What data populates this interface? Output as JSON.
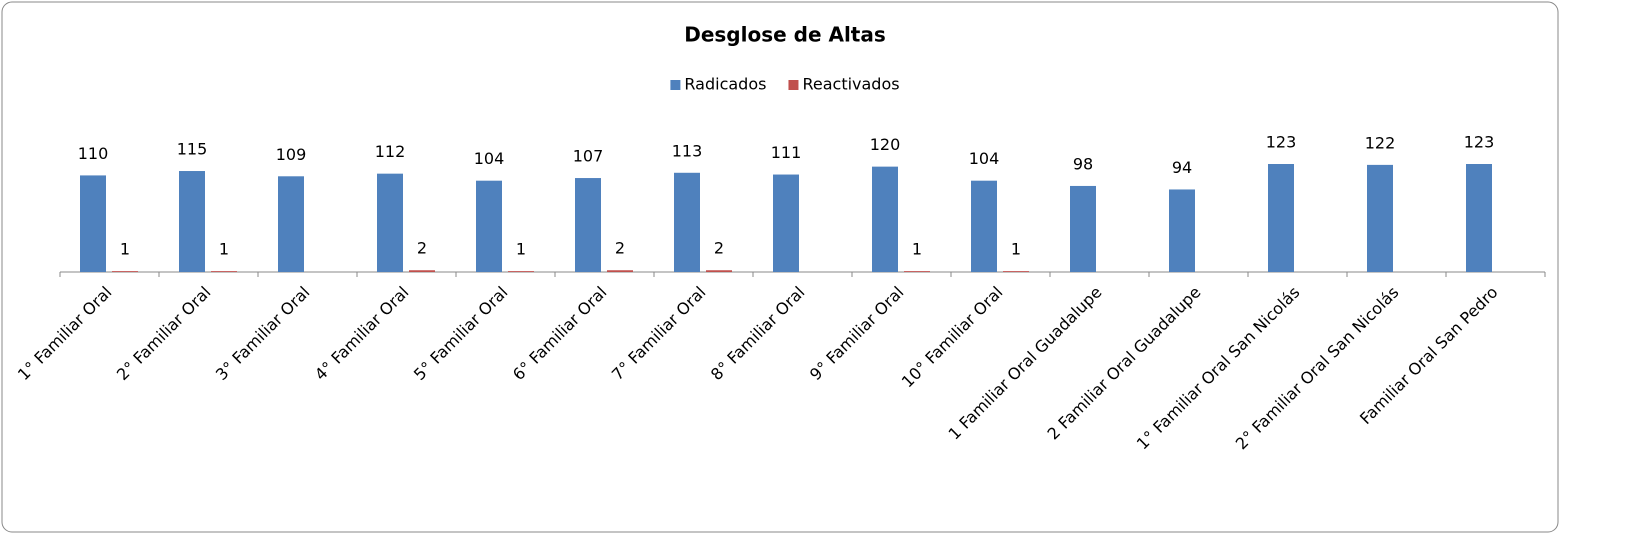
{
  "chart_data": {
    "type": "bar",
    "title": "Desglose de Altas",
    "categories": [
      "1° Familiar Oral",
      "2° Familiar Oral",
      "3° Familiar Oral",
      "4° Familiar Oral",
      "5° Familiar Oral",
      "6° Familiar Oral",
      "7° Familiar Oral",
      "8° Familiar Oral",
      "9° Familiar Oral",
      "10° Familiar Oral",
      "1 Familiar Oral Guadalupe",
      "2 Familiar Oral Guadalupe",
      "1° Familiar Oral San Nicolás",
      "2° Familiar Oral San Nicolás",
      "Familiar Oral San Pedro"
    ],
    "series": [
      {
        "name": "Radicados",
        "color": "#4f81bd",
        "values": [
          110,
          115,
          109,
          112,
          104,
          107,
          113,
          111,
          120,
          104,
          98,
          94,
          123,
          122,
          123
        ]
      },
      {
        "name": "Reactivados",
        "color": "#c0504d",
        "values": [
          1,
          1,
          null,
          2,
          1,
          2,
          2,
          null,
          1,
          1,
          null,
          null,
          null,
          null,
          null
        ]
      }
    ],
    "legend": "top"
  }
}
